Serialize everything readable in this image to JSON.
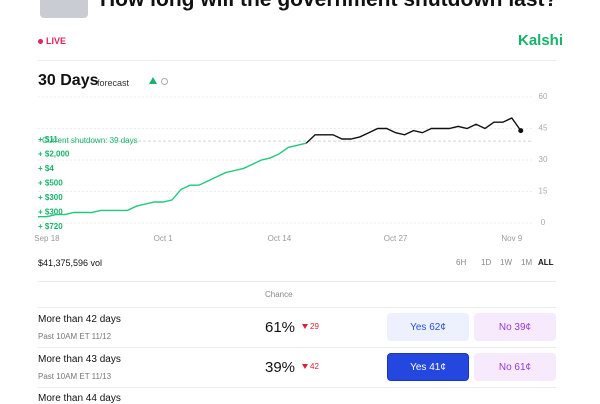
{
  "header": {
    "title": "How long will the government shutdown last?",
    "status": "LIVE",
    "brand": "Kalshi"
  },
  "chart_data": {
    "type": "line",
    "title": "30 Days",
    "subtitle": "forecast",
    "categories": [
      null,
      "Sep 18",
      null,
      null,
      null,
      null,
      null,
      null,
      null,
      null,
      null,
      null,
      null,
      null,
      "Oct 1",
      null,
      null,
      null,
      null,
      null,
      null,
      null,
      null,
      null,
      null,
      null,
      null,
      "Oct 14",
      null,
      null,
      null,
      null,
      null,
      null,
      null,
      null,
      null,
      null,
      null,
      null,
      "Oct 27",
      null,
      null,
      null,
      null,
      null,
      null,
      null,
      null,
      null,
      null,
      null,
      null,
      "Nov 9",
      null
    ],
    "values": [
      3,
      3,
      4,
      4,
      5,
      5,
      5,
      6,
      6,
      6,
      6,
      8,
      9,
      10,
      10,
      11,
      16,
      18,
      18,
      20,
      22,
      24,
      25,
      26,
      28,
      30,
      31,
      33,
      36,
      37,
      38,
      42,
      42,
      42,
      40,
      40,
      41,
      43,
      45,
      45,
      43,
      42,
      44,
      43,
      45,
      45,
      45,
      46,
      45,
      47,
      45,
      48,
      48,
      50,
      44
    ],
    "color": "#21c87a",
    "color_above": "#111111",
    "ylim": [
      0,
      60
    ],
    "yticks": [
      0,
      15,
      30,
      45,
      60
    ],
    "grid": true,
    "reference_line": {
      "value": 39,
      "label": "Current shutdown: 39 days"
    },
    "trades": [
      "+ $11",
      "+ $2,000",
      "+ $4",
      "+ $500",
      "+ $300",
      "+ $300",
      "+ $720"
    ]
  },
  "volume": "$41,375,596 vol",
  "ranges": [
    "6H",
    "1D",
    "1W",
    "1M",
    "ALL"
  ],
  "table": {
    "header": "Chance",
    "rows": [
      {
        "title": "More than 42 days",
        "subtitle": "Past 10AM ET 11/12",
        "chance": "61%",
        "change": "29",
        "yes": "Yes 62¢",
        "no": "No 39¢"
      },
      {
        "title": "More than 43 days",
        "subtitle": "Past 10AM ET 11/13",
        "chance": "39%",
        "change": "42",
        "yes": "Yes 41¢",
        "no": "No 61¢"
      },
      {
        "title": "More than 44 days"
      }
    ]
  }
}
